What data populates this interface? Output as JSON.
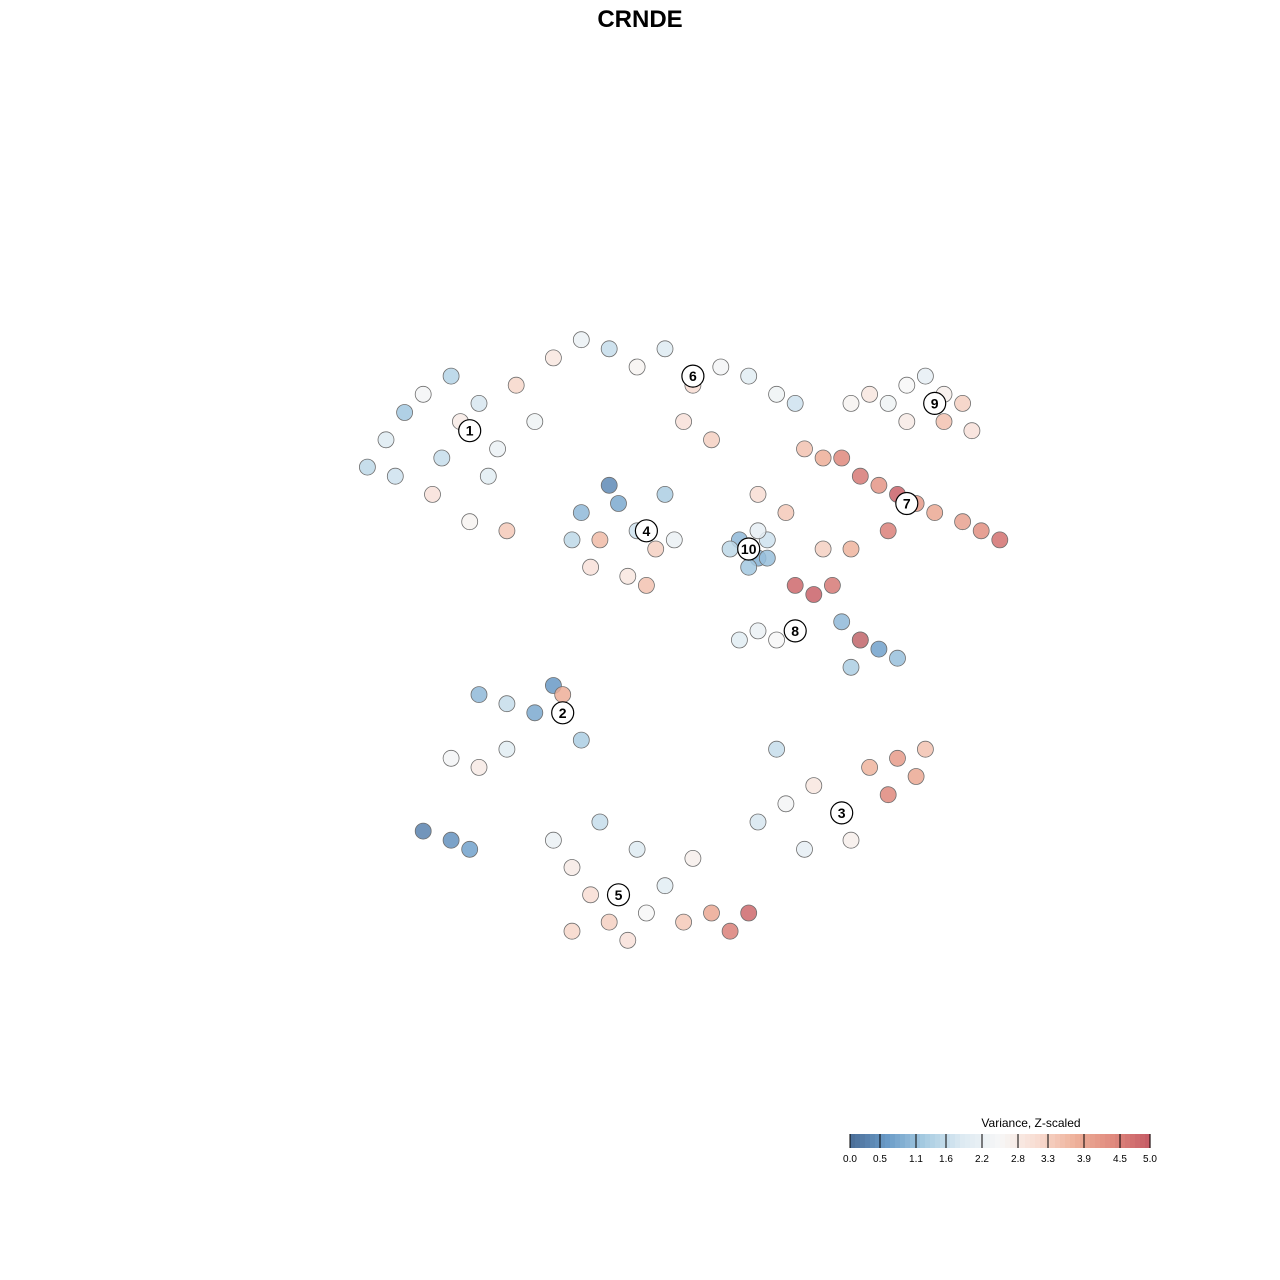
{
  "chart_data": {
    "type": "scatter",
    "title": "CRNDE",
    "xlabel": "",
    "ylabel": "",
    "grid": false,
    "legend_placement": "bottom-right",
    "value_range": [
      0.0,
      5.0
    ],
    "colorbar": {
      "title": "Variance, Z-scaled",
      "ticks": [
        {
          "value": 0.0,
          "label": "0.0"
        },
        {
          "value": 0.5,
          "label": "0.5"
        },
        {
          "value": 1.1,
          "label": "1.1"
        },
        {
          "value": 1.6,
          "label": "1.6"
        },
        {
          "value": 2.2,
          "label": "2.2"
        },
        {
          "value": 2.8,
          "label": "2.8"
        },
        {
          "value": 3.3,
          "label": "3.3"
        },
        {
          "value": 3.9,
          "label": "3.9"
        },
        {
          "value": 4.5,
          "label": "4.5"
        },
        {
          "value": 5.0,
          "label": "5.0"
        }
      ],
      "colors": [
        "#4a6d97",
        "#6a9bc8",
        "#a7cce2",
        "#ddeaf2",
        "#f7f7f7",
        "#f8dcd1",
        "#eeb19a",
        "#e08a7e",
        "#c55a64"
      ]
    },
    "point_style": {
      "stroke": "#6e6e6e",
      "opacity": 0.85
    },
    "clusters": [
      {
        "label": "1",
        "x": 0.29,
        "y": 0.73,
        "mean_value": 2.1
      },
      {
        "label": "2",
        "x": 0.39,
        "y": 0.42,
        "mean_value": 1.2
      },
      {
        "label": "3",
        "x": 0.69,
        "y": 0.31,
        "mean_value": 3.1
      },
      {
        "label": "4",
        "x": 0.48,
        "y": 0.62,
        "mean_value": 2.0
      },
      {
        "label": "5",
        "x": 0.45,
        "y": 0.22,
        "mean_value": 2.6
      },
      {
        "label": "6",
        "x": 0.53,
        "y": 0.79,
        "mean_value": 2.3
      },
      {
        "label": "7",
        "x": 0.76,
        "y": 0.65,
        "mean_value": 4.0
      },
      {
        "label": "8",
        "x": 0.64,
        "y": 0.51,
        "mean_value": 2.2
      },
      {
        "label": "9",
        "x": 0.79,
        "y": 0.76,
        "mean_value": 2.8
      },
      {
        "label": "10",
        "x": 0.59,
        "y": 0.6,
        "mean_value": 1.4
      }
    ],
    "series": [
      {
        "cluster": "1",
        "points": [
          {
            "x": 0.18,
            "y": 0.69,
            "v": 1.5
          },
          {
            "x": 0.2,
            "y": 0.72,
            "v": 1.9
          },
          {
            "x": 0.22,
            "y": 0.75,
            "v": 1.2
          },
          {
            "x": 0.24,
            "y": 0.77,
            "v": 2.4
          },
          {
            "x": 0.26,
            "y": 0.7,
            "v": 1.6
          },
          {
            "x": 0.28,
            "y": 0.74,
            "v": 2.8
          },
          {
            "x": 0.3,
            "y": 0.76,
            "v": 1.8
          },
          {
            "x": 0.32,
            "y": 0.71,
            "v": 2.2
          },
          {
            "x": 0.34,
            "y": 0.78,
            "v": 3.2
          },
          {
            "x": 0.25,
            "y": 0.66,
            "v": 3.0
          },
          {
            "x": 0.29,
            "y": 0.63,
            "v": 2.6
          },
          {
            "x": 0.33,
            "y": 0.62,
            "v": 3.4
          },
          {
            "x": 0.27,
            "y": 0.79,
            "v": 1.4
          },
          {
            "x": 0.31,
            "y": 0.68,
            "v": 2.0
          },
          {
            "x": 0.21,
            "y": 0.68,
            "v": 1.7
          },
          {
            "x": 0.36,
            "y": 0.74,
            "v": 2.3
          }
        ]
      },
      {
        "cluster": "2",
        "points": [
          {
            "x": 0.3,
            "y": 0.44,
            "v": 1.0
          },
          {
            "x": 0.33,
            "y": 0.43,
            "v": 1.6
          },
          {
            "x": 0.36,
            "y": 0.42,
            "v": 0.8
          },
          {
            "x": 0.38,
            "y": 0.45,
            "v": 0.6
          },
          {
            "x": 0.39,
            "y": 0.44,
            "v": 3.8
          },
          {
            "x": 0.27,
            "y": 0.37,
            "v": 2.4
          },
          {
            "x": 0.3,
            "y": 0.36,
            "v": 2.8
          },
          {
            "x": 0.33,
            "y": 0.38,
            "v": 2.0
          },
          {
            "x": 0.24,
            "y": 0.29,
            "v": 0.3
          },
          {
            "x": 0.27,
            "y": 0.28,
            "v": 0.5
          },
          {
            "x": 0.29,
            "y": 0.27,
            "v": 0.7
          },
          {
            "x": 0.41,
            "y": 0.39,
            "v": 1.3
          }
        ]
      },
      {
        "cluster": "3",
        "points": [
          {
            "x": 0.6,
            "y": 0.3,
            "v": 1.8
          },
          {
            "x": 0.63,
            "y": 0.32,
            "v": 2.4
          },
          {
            "x": 0.66,
            "y": 0.34,
            "v": 2.9
          },
          {
            "x": 0.69,
            "y": 0.31,
            "v": 3.2
          },
          {
            "x": 0.72,
            "y": 0.36,
            "v": 3.7
          },
          {
            "x": 0.75,
            "y": 0.37,
            "v": 4.1
          },
          {
            "x": 0.77,
            "y": 0.35,
            "v": 3.9
          },
          {
            "x": 0.7,
            "y": 0.28,
            "v": 2.7
          },
          {
            "x": 0.65,
            "y": 0.27,
            "v": 2.1
          },
          {
            "x": 0.62,
            "y": 0.38,
            "v": 1.6
          },
          {
            "x": 0.74,
            "y": 0.33,
            "v": 4.4
          },
          {
            "x": 0.78,
            "y": 0.38,
            "v": 3.5
          }
        ]
      },
      {
        "cluster": "4",
        "points": [
          {
            "x": 0.41,
            "y": 0.64,
            "v": 1.0
          },
          {
            "x": 0.43,
            "y": 0.61,
            "v": 3.6
          },
          {
            "x": 0.45,
            "y": 0.65,
            "v": 0.8
          },
          {
            "x": 0.47,
            "y": 0.62,
            "v": 1.7
          },
          {
            "x": 0.49,
            "y": 0.6,
            "v": 3.3
          },
          {
            "x": 0.5,
            "y": 0.66,
            "v": 1.3
          },
          {
            "x": 0.42,
            "y": 0.58,
            "v": 3.0
          },
          {
            "x": 0.46,
            "y": 0.57,
            "v": 2.9
          },
          {
            "x": 0.48,
            "y": 0.56,
            "v": 3.5
          },
          {
            "x": 0.44,
            "y": 0.67,
            "v": 0.4
          },
          {
            "x": 0.51,
            "y": 0.61,
            "v": 2.2
          },
          {
            "x": 0.4,
            "y": 0.61,
            "v": 1.5
          }
        ]
      },
      {
        "cluster": "5",
        "points": [
          {
            "x": 0.38,
            "y": 0.28,
            "v": 2.2
          },
          {
            "x": 0.4,
            "y": 0.25,
            "v": 2.8
          },
          {
            "x": 0.42,
            "y": 0.22,
            "v": 3.1
          },
          {
            "x": 0.44,
            "y": 0.19,
            "v": 3.3
          },
          {
            "x": 0.46,
            "y": 0.17,
            "v": 3.0
          },
          {
            "x": 0.48,
            "y": 0.2,
            "v": 2.5
          },
          {
            "x": 0.5,
            "y": 0.23,
            "v": 2.0
          },
          {
            "x": 0.52,
            "y": 0.19,
            "v": 3.4
          },
          {
            "x": 0.55,
            "y": 0.2,
            "v": 3.9
          },
          {
            "x": 0.57,
            "y": 0.18,
            "v": 4.5
          },
          {
            "x": 0.59,
            "y": 0.2,
            "v": 4.8
          },
          {
            "x": 0.43,
            "y": 0.3,
            "v": 1.6
          },
          {
            "x": 0.47,
            "y": 0.27,
            "v": 1.9
          },
          {
            "x": 0.53,
            "y": 0.26,
            "v": 2.7
          },
          {
            "x": 0.4,
            "y": 0.18,
            "v": 3.2
          }
        ]
      },
      {
        "cluster": "6",
        "points": [
          {
            "x": 0.38,
            "y": 0.81,
            "v": 2.9
          },
          {
            "x": 0.41,
            "y": 0.83,
            "v": 2.2
          },
          {
            "x": 0.44,
            "y": 0.82,
            "v": 1.6
          },
          {
            "x": 0.47,
            "y": 0.8,
            "v": 2.6
          },
          {
            "x": 0.5,
            "y": 0.82,
            "v": 1.9
          },
          {
            "x": 0.53,
            "y": 0.78,
            "v": 3.1
          },
          {
            "x": 0.56,
            "y": 0.8,
            "v": 2.4
          },
          {
            "x": 0.59,
            "y": 0.79,
            "v": 2.0
          },
          {
            "x": 0.62,
            "y": 0.77,
            "v": 2.3
          },
          {
            "x": 0.64,
            "y": 0.76,
            "v": 1.7
          },
          {
            "x": 0.55,
            "y": 0.72,
            "v": 3.3
          },
          {
            "x": 0.52,
            "y": 0.74,
            "v": 3.0
          }
        ]
      },
      {
        "cluster": "7",
        "points": [
          {
            "x": 0.65,
            "y": 0.71,
            "v": 3.5
          },
          {
            "x": 0.67,
            "y": 0.7,
            "v": 3.8
          },
          {
            "x": 0.69,
            "y": 0.7,
            "v": 4.4
          },
          {
            "x": 0.71,
            "y": 0.68,
            "v": 4.6
          },
          {
            "x": 0.73,
            "y": 0.67,
            "v": 4.2
          },
          {
            "x": 0.75,
            "y": 0.66,
            "v": 4.9
          },
          {
            "x": 0.77,
            "y": 0.65,
            "v": 4.1
          },
          {
            "x": 0.79,
            "y": 0.64,
            "v": 3.9
          },
          {
            "x": 0.82,
            "y": 0.63,
            "v": 4.0
          },
          {
            "x": 0.84,
            "y": 0.62,
            "v": 4.3
          },
          {
            "x": 0.86,
            "y": 0.61,
            "v": 4.7
          },
          {
            "x": 0.6,
            "y": 0.66,
            "v": 3.1
          },
          {
            "x": 0.63,
            "y": 0.64,
            "v": 3.4
          },
          {
            "x": 0.67,
            "y": 0.6,
            "v": 3.3
          },
          {
            "x": 0.7,
            "y": 0.6,
            "v": 3.7
          },
          {
            "x": 0.74,
            "y": 0.62,
            "v": 4.5
          }
        ]
      },
      {
        "cluster": "8",
        "points": [
          {
            "x": 0.64,
            "y": 0.56,
            "v": 4.8
          },
          {
            "x": 0.66,
            "y": 0.55,
            "v": 4.9
          },
          {
            "x": 0.68,
            "y": 0.56,
            "v": 4.6
          },
          {
            "x": 0.69,
            "y": 0.52,
            "v": 1.0
          },
          {
            "x": 0.71,
            "y": 0.5,
            "v": 0.9
          },
          {
            "x": 0.73,
            "y": 0.49,
            "v": 0.7
          },
          {
            "x": 0.75,
            "y": 0.48,
            "v": 1.1
          },
          {
            "x": 0.7,
            "y": 0.47,
            "v": 1.3
          },
          {
            "x": 0.6,
            "y": 0.51,
            "v": 2.2
          },
          {
            "x": 0.62,
            "y": 0.5,
            "v": 2.5
          },
          {
            "x": 0.58,
            "y": 0.5,
            "v": 2.0
          },
          {
            "x": 0.71,
            "y": 0.5,
            "v": 4.7
          }
        ]
      },
      {
        "cluster": "9",
        "points": [
          {
            "x": 0.7,
            "y": 0.76,
            "v": 2.6
          },
          {
            "x": 0.72,
            "y": 0.77,
            "v": 2.9
          },
          {
            "x": 0.74,
            "y": 0.76,
            "v": 2.3
          },
          {
            "x": 0.76,
            "y": 0.78,
            "v": 2.5
          },
          {
            "x": 0.78,
            "y": 0.79,
            "v": 2.1
          },
          {
            "x": 0.8,
            "y": 0.77,
            "v": 2.7
          },
          {
            "x": 0.82,
            "y": 0.76,
            "v": 3.3
          },
          {
            "x": 0.83,
            "y": 0.73,
            "v": 3.0
          },
          {
            "x": 0.8,
            "y": 0.74,
            "v": 3.5
          },
          {
            "x": 0.76,
            "y": 0.74,
            "v": 2.8
          }
        ]
      },
      {
        "cluster": "10",
        "points": [
          {
            "x": 0.58,
            "y": 0.61,
            "v": 1.0
          },
          {
            "x": 0.59,
            "y": 0.6,
            "v": 1.4
          },
          {
            "x": 0.6,
            "y": 0.59,
            "v": 0.9
          },
          {
            "x": 0.61,
            "y": 0.61,
            "v": 1.7
          },
          {
            "x": 0.59,
            "y": 0.58,
            "v": 1.2
          },
          {
            "x": 0.6,
            "y": 0.62,
            "v": 2.1
          },
          {
            "x": 0.57,
            "y": 0.6,
            "v": 1.5
          },
          {
            "x": 0.61,
            "y": 0.59,
            "v": 1.1
          }
        ]
      }
    ]
  }
}
